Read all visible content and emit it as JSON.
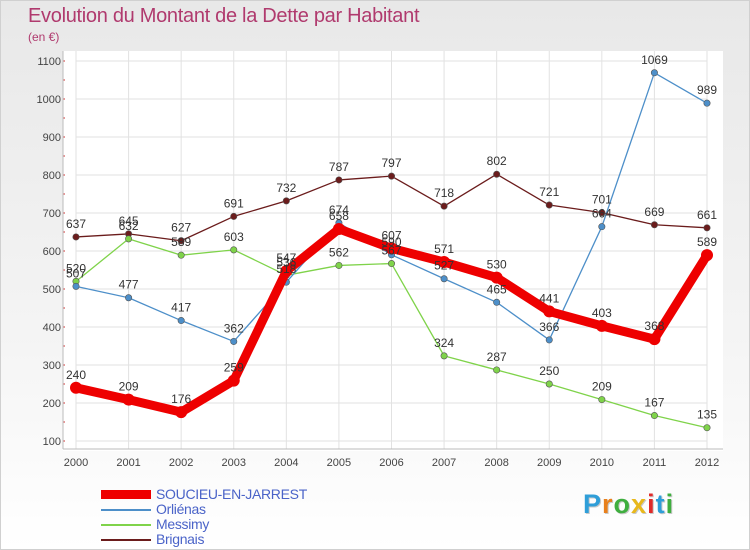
{
  "chart_data": {
    "type": "line",
    "title": "Evolution du Montant de la Dette par Habitant",
    "unit_label": "(en €)",
    "x": [
      "2000",
      "2001",
      "2002",
      "2003",
      "2004",
      "2005",
      "2006",
      "2007",
      "2008",
      "2009",
      "2010",
      "2011",
      "2012"
    ],
    "ylim": [
      100,
      1100
    ],
    "yticks": [
      "100",
      "200",
      "300",
      "400",
      "500",
      "600",
      "700",
      "800",
      "900",
      "1000",
      "1100"
    ],
    "series": [
      {
        "name": "SOUCIEU-EN-JARREST",
        "color": "#ee0000",
        "values": [
          240,
          209,
          176,
          259,
          547,
          658,
          607,
          571,
          530,
          441,
          403,
          368,
          589
        ]
      },
      {
        "name": "Orliénas",
        "color": "#4d8fc9",
        "values": [
          507,
          477,
          417,
          362,
          518,
          674,
          590,
          527,
          465,
          366,
          664,
          1069,
          989
        ]
      },
      {
        "name": "Messimy",
        "color": "#7fd34a",
        "values": [
          520,
          632,
          589,
          603,
          536,
          562,
          567,
          324,
          287,
          250,
          209,
          167,
          135
        ]
      },
      {
        "name": "Brignais",
        "color": "#6b1c1c",
        "values": [
          637,
          645,
          627,
          691,
          732,
          787,
          797,
          718,
          802,
          721,
          701,
          669,
          661
        ]
      }
    ],
    "grid": true,
    "legend_position": "bottom-left"
  },
  "brand": {
    "text": "Proxiti",
    "letters": [
      "P",
      "r",
      "o",
      "x",
      "i",
      "t",
      "i"
    ],
    "colors": [
      "#2f9ed8",
      "#e8801c",
      "#3fae3f",
      "#e8b81c",
      "#e02a2a",
      "#2f9ed8",
      "#3fae3f"
    ]
  }
}
